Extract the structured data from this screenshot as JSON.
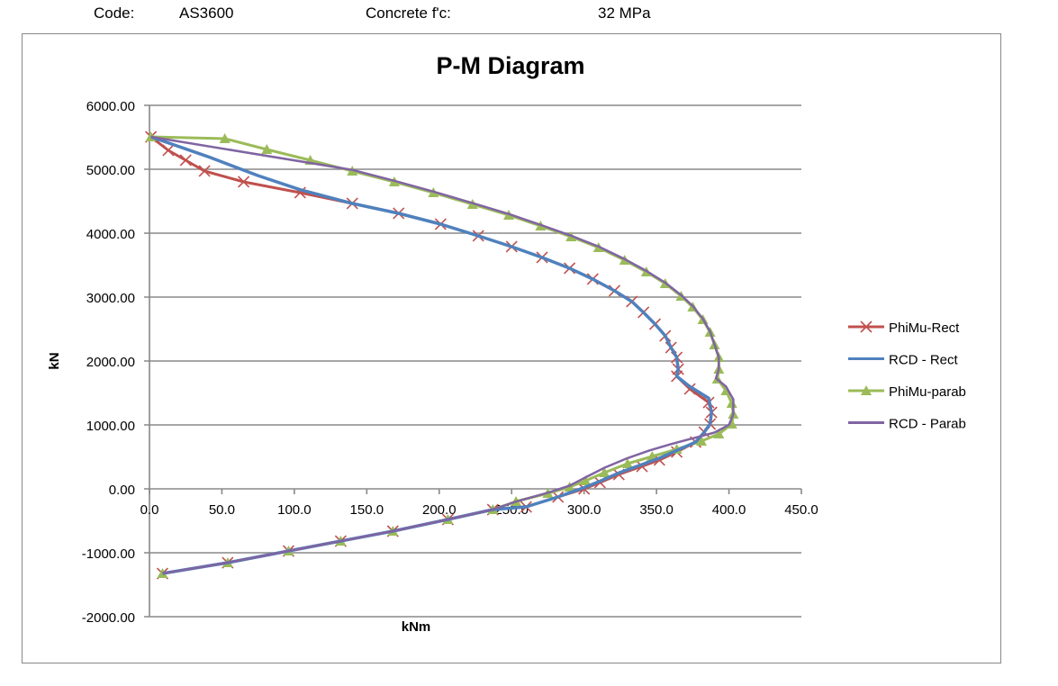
{
  "header": {
    "code_label": "Code:",
    "code_value": "AS3600",
    "fc_label": "Concrete f'c:",
    "fc_value": "32  MPa"
  },
  "chart_data": {
    "type": "line",
    "title": "P-M Diagram",
    "xlabel": "kNm",
    "ylabel": "kN",
    "xlim": [
      0,
      450
    ],
    "ylim": [
      -2000,
      6000
    ],
    "xticks": [
      "0.0",
      "50.0",
      "100.0",
      "150.0",
      "200.0",
      "250.0",
      "300.0",
      "350.0",
      "400.0",
      "450.0"
    ],
    "yticks": [
      "-2000.00",
      "-1000.00",
      "0.00",
      "1000.00",
      "2000.00",
      "3000.00",
      "4000.00",
      "5000.00",
      "6000.00"
    ],
    "grid": "horizontal",
    "legend": "right",
    "series": [
      {
        "name": "PhiMu-Rect",
        "color": "#c0504d",
        "marker": "x",
        "points": [
          [
            1,
            5507
          ],
          [
            13,
            5296
          ],
          [
            25,
            5141
          ],
          [
            38,
            4972
          ],
          [
            65,
            4803
          ],
          [
            104,
            4634
          ],
          [
            140,
            4465
          ],
          [
            172,
            4310
          ],
          [
            201,
            4141
          ],
          [
            227,
            3958
          ],
          [
            250,
            3789
          ],
          [
            271,
            3620
          ],
          [
            290,
            3451
          ],
          [
            306,
            3282
          ],
          [
            321,
            3099
          ],
          [
            333,
            2930
          ],
          [
            341,
            2761
          ],
          [
            349,
            2577
          ],
          [
            356,
            2394
          ],
          [
            360,
            2211
          ],
          [
            364,
            2056
          ],
          [
            365,
            1873
          ],
          [
            364,
            1761
          ],
          [
            373,
            1563
          ],
          [
            386,
            1352
          ],
          [
            388,
            1197
          ],
          [
            387,
            1014
          ],
          [
            383,
            887
          ],
          [
            377,
            732
          ],
          [
            364,
            577
          ],
          [
            352,
            451
          ],
          [
            340,
            352
          ],
          [
            324,
            225
          ],
          [
            311,
            99
          ],
          [
            300,
            0
          ],
          [
            282,
            -127
          ],
          [
            260,
            -282
          ],
          [
            237,
            -324
          ],
          [
            206,
            -479
          ],
          [
            168,
            -662
          ],
          [
            132,
            -817
          ],
          [
            96,
            -972
          ],
          [
            54,
            -1155
          ],
          [
            9,
            -1324
          ]
        ]
      },
      {
        "name": "RCD - Rect",
        "color": "#4f81bd",
        "marker": "none",
        "points": [
          [
            1,
            5507
          ],
          [
            40,
            5200
          ],
          [
            75,
            4900
          ],
          [
            104,
            4680
          ],
          [
            140,
            4465
          ],
          [
            172,
            4310
          ],
          [
            201,
            4141
          ],
          [
            227,
            3958
          ],
          [
            250,
            3789
          ],
          [
            271,
            3620
          ],
          [
            290,
            3451
          ],
          [
            306,
            3282
          ],
          [
            321,
            3099
          ],
          [
            333,
            2930
          ],
          [
            341,
            2761
          ],
          [
            349,
            2577
          ],
          [
            356,
            2394
          ],
          [
            360,
            2211
          ],
          [
            364,
            2056
          ],
          [
            365,
            1873
          ],
          [
            364,
            1761
          ],
          [
            373,
            1600
          ],
          [
            386,
            1420
          ],
          [
            388,
            1197
          ],
          [
            387,
            1014
          ],
          [
            383,
            887
          ],
          [
            377,
            732
          ],
          [
            364,
            600
          ],
          [
            352,
            480
          ],
          [
            340,
            380
          ],
          [
            324,
            250
          ],
          [
            311,
            120
          ],
          [
            300,
            20
          ],
          [
            282,
            -127
          ],
          [
            260,
            -282
          ],
          [
            237,
            -324
          ],
          [
            206,
            -479
          ],
          [
            168,
            -662
          ],
          [
            132,
            -817
          ],
          [
            96,
            -972
          ],
          [
            54,
            -1155
          ],
          [
            9,
            -1324
          ]
        ]
      },
      {
        "name": "PhiMu-parab",
        "color": "#9bbb59",
        "marker": "triangle",
        "points": [
          [
            1,
            5507
          ],
          [
            52,
            5479
          ],
          [
            81,
            5310
          ],
          [
            111,
            5141
          ],
          [
            140,
            4972
          ],
          [
            169,
            4803
          ],
          [
            196,
            4634
          ],
          [
            223,
            4451
          ],
          [
            248,
            4282
          ],
          [
            270,
            4113
          ],
          [
            291,
            3944
          ],
          [
            310,
            3775
          ],
          [
            328,
            3577
          ],
          [
            343,
            3394
          ],
          [
            356,
            3211
          ],
          [
            367,
            3014
          ],
          [
            375,
            2845
          ],
          [
            382,
            2648
          ],
          [
            387,
            2451
          ],
          [
            390,
            2254
          ],
          [
            393,
            2056
          ],
          [
            393,
            1873
          ],
          [
            392,
            1718
          ],
          [
            398,
            1535
          ],
          [
            402,
            1338
          ],
          [
            403,
            1169
          ],
          [
            402,
            1014
          ],
          [
            393,
            859
          ],
          [
            381,
            746
          ],
          [
            364,
            620
          ],
          [
            347,
            507
          ],
          [
            330,
            394
          ],
          [
            314,
            254
          ],
          [
            301,
            127
          ],
          [
            290,
            28
          ],
          [
            275,
            -70
          ],
          [
            253,
            -197
          ],
          [
            237,
            -324
          ],
          [
            206,
            -479
          ],
          [
            168,
            -662
          ],
          [
            132,
            -817
          ],
          [
            96,
            -972
          ],
          [
            54,
            -1155
          ],
          [
            9,
            -1324
          ]
        ]
      },
      {
        "name": "RCD - Parab",
        "color": "#8064a2",
        "marker": "none",
        "points": [
          [
            1,
            5507
          ],
          [
            140,
            4990
          ],
          [
            169,
            4820
          ],
          [
            196,
            4650
          ],
          [
            223,
            4470
          ],
          [
            248,
            4300
          ],
          [
            270,
            4130
          ],
          [
            291,
            3960
          ],
          [
            310,
            3790
          ],
          [
            328,
            3595
          ],
          [
            343,
            3410
          ],
          [
            356,
            3225
          ],
          [
            367,
            3030
          ],
          [
            375,
            2860
          ],
          [
            382,
            2660
          ],
          [
            387,
            2460
          ],
          [
            390,
            2260
          ],
          [
            393,
            2056
          ],
          [
            393,
            1873
          ],
          [
            391,
            1730
          ],
          [
            398,
            1600
          ],
          [
            403,
            1400
          ],
          [
            403,
            1169
          ],
          [
            400,
            1000
          ],
          [
            390,
            880
          ],
          [
            375,
            790
          ],
          [
            360,
            700
          ],
          [
            345,
            600
          ],
          [
            330,
            480
          ],
          [
            314,
            330
          ],
          [
            301,
            180
          ],
          [
            290,
            50
          ],
          [
            275,
            -60
          ],
          [
            253,
            -200
          ],
          [
            237,
            -324
          ],
          [
            206,
            -479
          ],
          [
            168,
            -662
          ],
          [
            132,
            -817
          ],
          [
            96,
            -972
          ],
          [
            54,
            -1155
          ],
          [
            9,
            -1324
          ]
        ]
      }
    ]
  }
}
